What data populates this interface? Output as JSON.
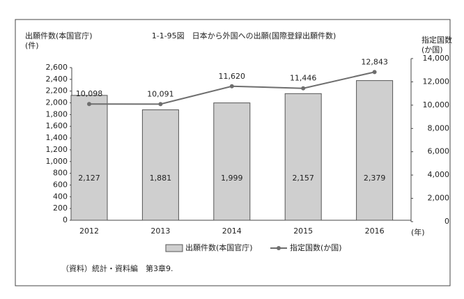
{
  "chart_data": {
    "type": "bar_line",
    "title": "1-1-95図　日本から外国への出願(国際登録出願件数)",
    "y_label": [
      "出願件数(本国官庁)",
      "(件)"
    ],
    "y2_label": [
      "指定国数",
      "(か国)"
    ],
    "x_unit": "(年)",
    "source": "（資料）統計・資料編　第3章9.",
    "categories": [
      "2012",
      "2013",
      "2014",
      "2015",
      "2016"
    ],
    "series": [
      {
        "name": "出願件数(本国官庁)",
        "color": "#cfcfcf",
        "kind": "bar",
        "values": [
          2127,
          1881,
          1999,
          2157,
          2379
        ],
        "value_labels": [
          "2,127",
          "1,881",
          "1,999",
          "2,157",
          "2,379"
        ]
      },
      {
        "name": "指定国数(か国)",
        "color": "#6e6e6e",
        "kind": "line",
        "axis": "y2",
        "values": [
          10098,
          10091,
          11620,
          11446,
          12843
        ],
        "value_labels": [
          "10,098",
          "10,091",
          "11,620",
          "11,446",
          "12,843"
        ]
      }
    ],
    "ylim": [
      0,
      2600
    ],
    "yticks": [
      0,
      200,
      400,
      600,
      800,
      {
        "value": 1000,
        "label": "1,000"
      },
      {
        "value": 1200,
        "label": "1,200"
      },
      {
        "value": 1400,
        "label": "1,400"
      },
      {
        "value": 1600,
        "label": "1,600"
      },
      {
        "value": 1800,
        "label": "1,800"
      },
      {
        "value": 2000,
        "label": "2,000"
      },
      {
        "value": 2200,
        "label": "2,200"
      },
      {
        "value": 2400,
        "label": "2,400"
      },
      {
        "value": 2600,
        "label": "2,600"
      }
    ],
    "y2lim": [
      0,
      14000
    ],
    "y2ticks": [
      0,
      {
        "value": 2000,
        "label": "2,000"
      },
      {
        "value": 4000,
        "label": "4,000"
      },
      {
        "value": 6000,
        "label": "6,000"
      },
      {
        "value": 8000,
        "label": "8,000"
      },
      {
        "value": 10000,
        "label": "10,000"
      },
      {
        "value": 12000,
        "label": "12,000"
      },
      {
        "value": 14000,
        "label": "14,000"
      }
    ],
    "legend": "bottom"
  }
}
